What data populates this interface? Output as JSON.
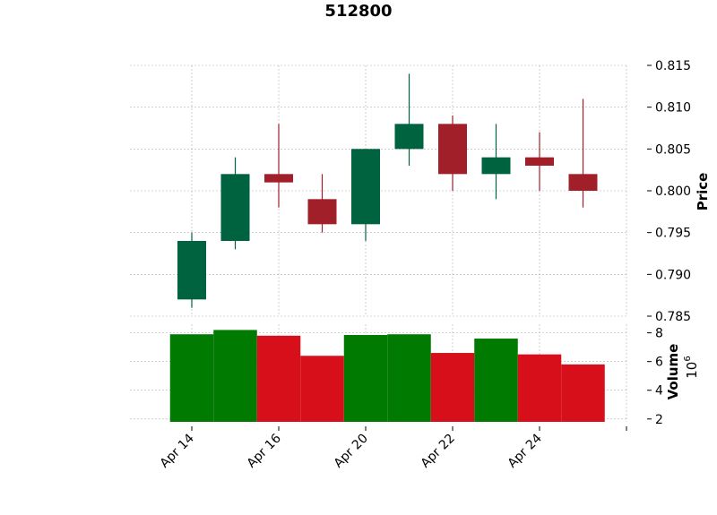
{
  "chart_data": {
    "type": "candlestick",
    "title": "512800",
    "colors": {
      "up_body": "#006340",
      "down_body": "#a01f29",
      "up_volume": "#007a00",
      "down_volume": "#d60f1b",
      "grid": "#b0b0b0"
    },
    "price_panel": {
      "ylabel": "Price",
      "ylim": [
        0.785,
        0.815
      ],
      "yticks": [
        "0.785",
        "0.790",
        "0.795",
        "0.800",
        "0.805",
        "0.810",
        "0.815"
      ],
      "grid": true,
      "axis_side": "right"
    },
    "volume_panel": {
      "ylabel": "Volume",
      "scale_label": "10",
      "scale_exponent": "6",
      "ylim": [
        1.8,
        8.6
      ],
      "yticks": [
        "2",
        "4",
        "6",
        "8"
      ],
      "grid": true,
      "axis_side": "right"
    },
    "xticks": [
      {
        "index": 0,
        "label": "Apr 14"
      },
      {
        "index": 2,
        "label": "Apr 16"
      },
      {
        "index": 4,
        "label": "Apr 20"
      },
      {
        "index": 6,
        "label": "Apr 22"
      },
      {
        "index": 8,
        "label": "Apr 24"
      },
      {
        "index": 10,
        "label": ""
      }
    ],
    "candles": [
      {
        "open": 0.787,
        "high": 0.795,
        "low": 0.786,
        "close": 0.794,
        "volume": 7.9
      },
      {
        "open": 0.794,
        "high": 0.804,
        "low": 0.793,
        "close": 0.802,
        "volume": 8.2
      },
      {
        "open": 0.802,
        "high": 0.808,
        "low": 0.798,
        "close": 0.801,
        "volume": 7.8
      },
      {
        "open": 0.799,
        "high": 0.802,
        "low": 0.795,
        "close": 0.796,
        "volume": 6.4
      },
      {
        "open": 0.796,
        "high": 0.805,
        "low": 0.794,
        "close": 0.805,
        "volume": 7.85
      },
      {
        "open": 0.805,
        "high": 0.814,
        "low": 0.803,
        "close": 0.808,
        "volume": 7.9
      },
      {
        "open": 0.808,
        "high": 0.809,
        "low": 0.8,
        "close": 0.802,
        "volume": 6.6
      },
      {
        "open": 0.802,
        "high": 0.808,
        "low": 0.799,
        "close": 0.804,
        "volume": 7.6
      },
      {
        "open": 0.804,
        "high": 0.807,
        "low": 0.8,
        "close": 0.803,
        "volume": 6.5
      },
      {
        "open": 0.802,
        "high": 0.811,
        "low": 0.798,
        "close": 0.8,
        "volume": 5.8
      }
    ]
  }
}
